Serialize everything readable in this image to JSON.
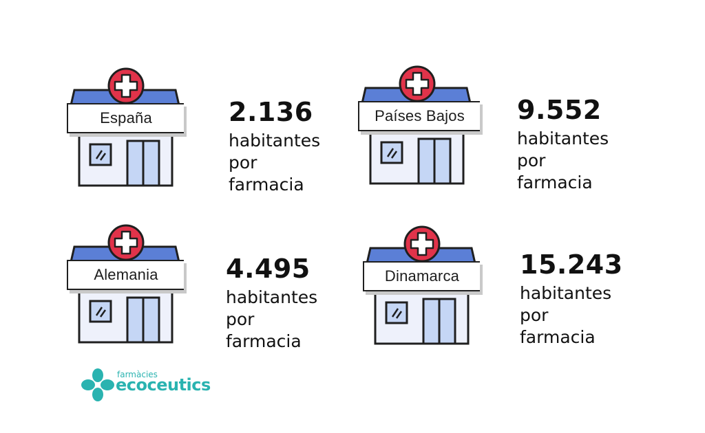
{
  "countries": [
    {
      "name": "España",
      "value": "2.136",
      "label_line1": "habitantes por",
      "label_line2": "farmacia"
    },
    {
      "name": "Países Bajos",
      "value": "9.552",
      "label_line1": "habitantes por",
      "label_line2": "farmacia"
    },
    {
      "name": "Alemania",
      "value": "4.495",
      "label_line1": "habitantes por",
      "label_line2": "farmacia"
    },
    {
      "name": "Dinamarca",
      "value": "15.243",
      "label_line1": "habitantes por",
      "label_line2": "farmacia"
    }
  ],
  "logo": {
    "small": "farmàcies",
    "big": "ecoceutics"
  },
  "colors": {
    "roof": "#5b7fd6",
    "cross_circle": "#e1334a",
    "building": "#eef1fb",
    "window": "#c5d6f5",
    "logo": "#2ab3b0"
  },
  "icons": {
    "pharmacy": "pharmacy-building-icon",
    "cross": "medical-cross-icon",
    "logo": "flower-logo-icon"
  }
}
